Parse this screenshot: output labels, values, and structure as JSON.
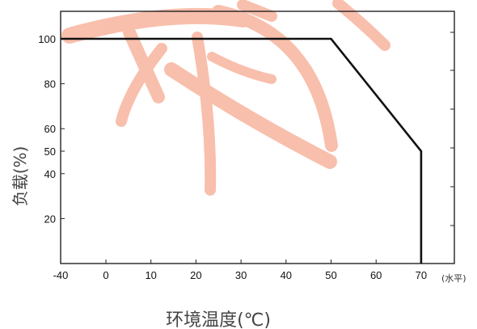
{
  "chart_data": {
    "type": "line",
    "xlabel": "环境温度(℃)",
    "ylabel": "负载(%)",
    "x_extra_label": "(水平)",
    "xlim": [
      -40,
      70
    ],
    "ylim": [
      0,
      100
    ],
    "x_ticks": [
      -40,
      0,
      10,
      20,
      30,
      40,
      50,
      60,
      70
    ],
    "y_ticks": [
      20,
      40,
      50,
      60,
      80,
      100
    ],
    "series": [
      {
        "x": [
          -40,
          50,
          70,
          70
        ],
        "y": [
          100,
          100,
          50,
          0
        ]
      }
    ],
    "grid": false,
    "watermark_color": "#f8b9a4",
    "line_color": "#111111"
  }
}
